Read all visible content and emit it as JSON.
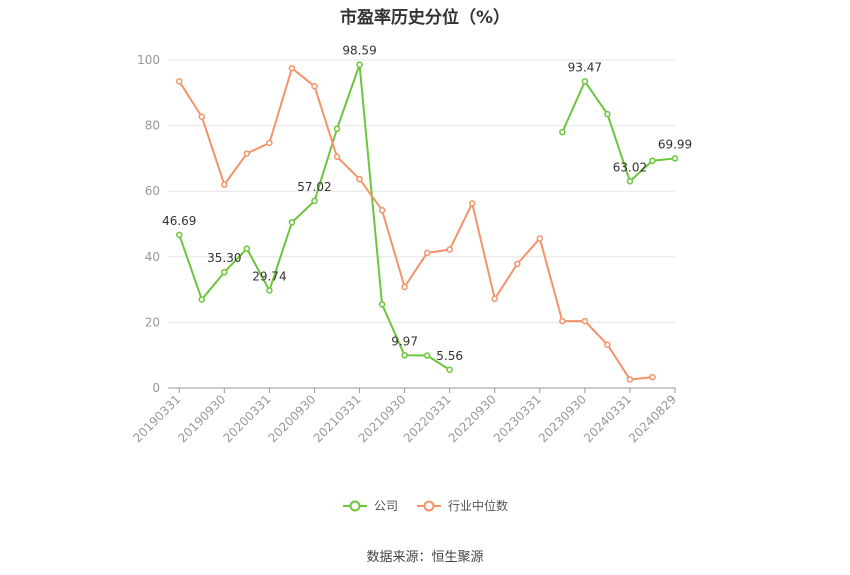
{
  "chart_data": {
    "type": "line",
    "title": "市盈率历史分位（%）",
    "ylim": [
      0,
      100
    ],
    "yticks": [
      0,
      20,
      40,
      60,
      80,
      100
    ],
    "x": [
      "20190331",
      "20190630",
      "20190930",
      "20191231",
      "20200331",
      "20200630",
      "20200930",
      "20201231",
      "20210331",
      "20210630",
      "20210930",
      "20211231",
      "20220331",
      "20220630",
      "20220930",
      "20221231",
      "20230331",
      "20230630",
      "20230930",
      "20231231",
      "20240331",
      "20240630",
      "20240829"
    ],
    "xtick_labels": [
      "20190331",
      "20190930",
      "20200331",
      "20200930",
      "20210331",
      "20210930",
      "20220331",
      "20220930",
      "20230331",
      "20230930",
      "20240331",
      "20240829"
    ],
    "grid": true,
    "legend_position": "bottom",
    "series": [
      {
        "name": "公司",
        "color": "#6cc63b",
        "values": [
          46.69,
          27,
          35.3,
          42.5,
          29.74,
          50.5,
          57.02,
          79,
          98.59,
          25.5,
          9.97,
          9.9,
          5.56,
          null,
          null,
          null,
          null,
          78,
          93.47,
          83.5,
          63.02,
          69.3,
          69.99
        ],
        "labels": {
          "0": "46.69",
          "2": "35.30",
          "4": "29.74",
          "6": "57.02",
          "8": "98.59",
          "10": "9.97",
          "12": "5.56",
          "18": "93.47",
          "20": "63.02",
          "22": "69.99"
        }
      },
      {
        "name": "行业中位数",
        "color": "#f4936a",
        "values": [
          93.5,
          82.7,
          62,
          71.5,
          74.7,
          97.5,
          92,
          70.5,
          63.7,
          54.2,
          30.8,
          41.2,
          42.2,
          56.3,
          27.2,
          37.8,
          45.6,
          20.4,
          20.4,
          13.2,
          2.6,
          3.3,
          null
        ]
      }
    ]
  },
  "legend": {
    "company": "公司",
    "industry": "行业中位数"
  },
  "source": "数据来源：恒生聚源"
}
